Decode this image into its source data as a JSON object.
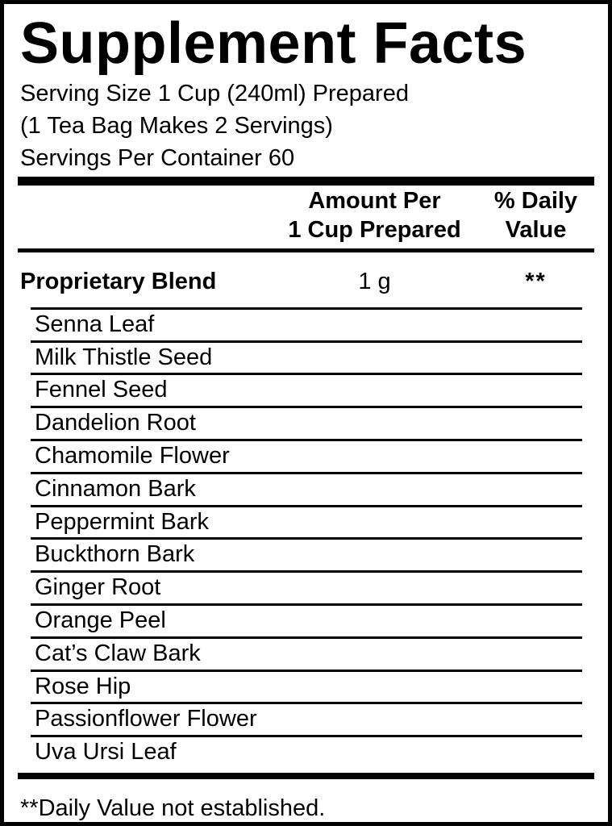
{
  "label": {
    "title": "Supplement Facts",
    "serving_lines": {
      "line1": "Serving Size 1 Cup (240ml) Prepared",
      "line2": "(1 Tea Bag Makes 2 Servings)",
      "line3": "Servings Per Container 60"
    },
    "columns": {
      "amount": {
        "line1": "Amount Per",
        "line2": "1 Cup Prepared"
      },
      "daily_value": {
        "line1": "% Daily",
        "line2": "Value"
      }
    },
    "proprietary_blend": {
      "name": "Proprietary Blend",
      "amount": "1 g",
      "daily_value": "**"
    },
    "ingredients": [
      "Senna Leaf",
      "Milk Thistle Seed",
      "Fennel Seed",
      "Dandelion Root",
      "Chamomile Flower",
      "Cinnamon Bark",
      "Peppermint Bark",
      "Buckthorn Bark",
      "Ginger Root",
      "Orange Peel",
      "Cat’s Claw Bark",
      "Rose Hip",
      "Passionflower Flower",
      "Uva Ursi Leaf"
    ],
    "footnote": "**Daily Value not established.",
    "colors": {
      "text": "#000000",
      "background": "#ffffff"
    }
  }
}
